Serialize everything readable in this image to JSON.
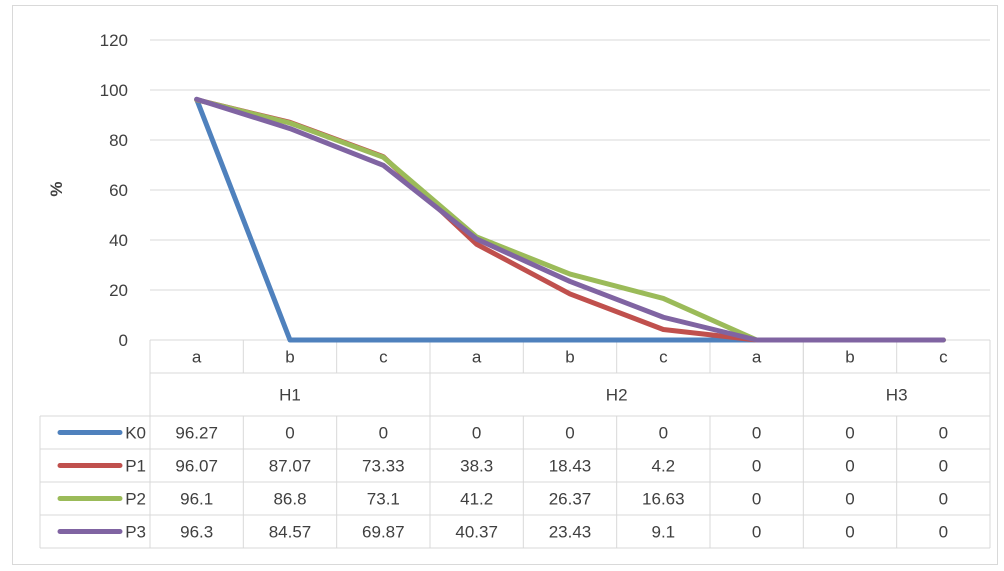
{
  "chart_data": {
    "type": "line",
    "title": "",
    "ylabel": "%",
    "xlabel": "",
    "ylim": [
      0,
      120
    ],
    "yticks": [
      0,
      20,
      40,
      60,
      80,
      100,
      120
    ],
    "grid": true,
    "legend": "data-table",
    "categories": [
      "a",
      "b",
      "c",
      "a",
      "b",
      "c",
      "a",
      "b",
      "c"
    ],
    "groups": [
      {
        "label": "H1",
        "span": 3
      },
      {
        "label": "H2",
        "span": 4
      },
      {
        "label": "H3",
        "span": 2
      }
    ],
    "series": [
      {
        "name": "K0",
        "color": "#4f81bd",
        "values": [
          "96.27",
          "0",
          "0",
          "0",
          "0",
          "0",
          "0",
          "0",
          "0"
        ]
      },
      {
        "name": "P1",
        "color": "#c0504d",
        "values": [
          "96.07",
          "87.07",
          "73.33",
          "38.3",
          "18.43",
          "4.2",
          "0",
          "0",
          "0"
        ]
      },
      {
        "name": "P2",
        "color": "#9bbb59",
        "values": [
          "96.1",
          "86.8",
          "73.1",
          "41.2",
          "26.37",
          "16.63",
          "0",
          "0",
          "0"
        ]
      },
      {
        "name": "P3",
        "color": "#8064a2",
        "values": [
          "96.3",
          "84.57",
          "69.87",
          "40.37",
          "23.43",
          "9.1",
          "0",
          "0",
          "0"
        ]
      }
    ]
  }
}
